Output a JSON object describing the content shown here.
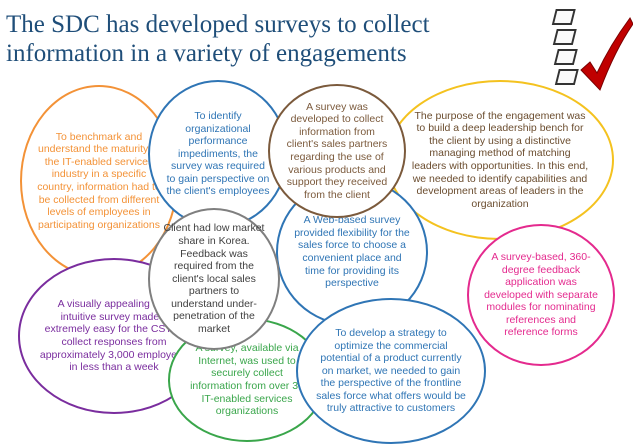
{
  "title": {
    "line1": "The SDC has developed surveys to collect",
    "line2": "information in a variety of engagements"
  },
  "colors": {
    "title": "#1f4e79",
    "orange": "#f39237",
    "blue": "#2f75b5",
    "brown": "#7b5a3c",
    "yellow": "#f4c21f",
    "purple": "#7a2d9e",
    "magenta": "#e42a8e",
    "gray": "#7f7f7f",
    "green": "#3aa64b"
  },
  "bubbles": {
    "benchmark": "To benchmark and understand the maturity of the IT-enabled services industry in a specific country, information had to be collected from different levels of employees in participating organizations",
    "impediments": "To identify organizational performance impediments, the survey was required to gain perspective on the client's employees",
    "sales_partners": "A survey was developed to collect information from client's sales partners regarding the use of various products and support they received from the client",
    "leadership": "The purpose of the engagement was to build a deep leadership bench for the client by using a distinctive managing method of matching leaders with opportunities. In this end, we needed to identify capabilities and development areas of leaders in the organization",
    "web_survey": "A Web-based survey provided flexibility for the sales force to choose a convenient place and time for providing its perspective",
    "korea": "Client had low market share in Korea. Feedback was required from the client's local sales partners to understand under-penetration of the market",
    "feedback_360": "A survey-based, 360-degree feedback application was developed with separate modules for nominating references and reference forms",
    "intuitive": "A visually appealing and intuitive survey made it extremely easy for the CST to collect responses from approximately 3,000 employees in less than a week",
    "internet": "A survey, available via Internet, was used to securely collect information from over 30 IT-enabled services organizations",
    "commercial": "To develop a strategy to optimize the commercial potential of a product currently on market, we needed to gain the perspective of the frontline sales force what offers would be truly attractive to customers"
  }
}
